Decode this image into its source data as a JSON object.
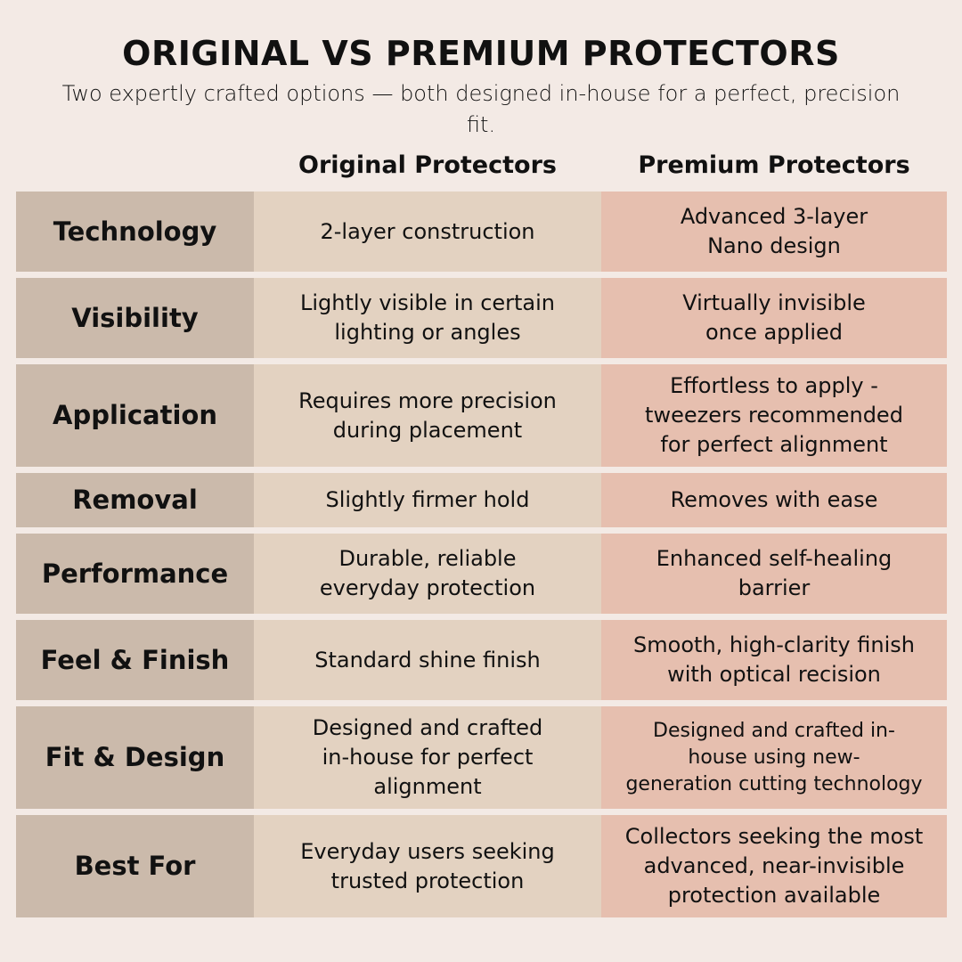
{
  "title": "ORIGINAL VS PREMIUM PROTECTORS",
  "subtitle": "Two expertly crafted options — both designed in-house for a perfect, precision fit.",
  "columns": [
    "Original Protectors",
    "Premium Protectors"
  ],
  "colors": {
    "background": "#f3eae5",
    "label_column": "#cbbaab",
    "original_column": "#e3d2c1",
    "premium_column": "#e6bfaf"
  },
  "rows": [
    {
      "label": "Technology",
      "original": "2-layer construction",
      "premium": "Advanced 3-layer\nNano design"
    },
    {
      "label": "Visibility",
      "original": "Lightly visible in certain\nlighting or angles",
      "premium": "Virtually invisible\nonce applied"
    },
    {
      "label": "Application",
      "original": "Requires more precision\nduring placement",
      "premium": "Effortless to apply -\ntweezers recommended\nfor perfect alignment"
    },
    {
      "label": "Removal",
      "original": "Slightly firmer hold",
      "premium": "Removes with ease"
    },
    {
      "label": "Performance",
      "original": "Durable, reliable\neveryday protection",
      "premium": "Enhanced self-healing\nbarrier"
    },
    {
      "label": "Feel & Finish",
      "original": "Standard shine finish",
      "premium": "Smooth, high-clarity finish\nwith optical recision"
    },
    {
      "label": "Fit & Design",
      "original": "Designed and crafted\nin-house for perfect\nalignment",
      "premium": "Designed and crafted in-\nhouse using new-\ngeneration cutting technology"
    },
    {
      "label": "Best For",
      "original": "Everyday users seeking\ntrusted protection",
      "premium": "Collectors seeking the most\nadvanced, near-invisible\nprotection available"
    }
  ]
}
